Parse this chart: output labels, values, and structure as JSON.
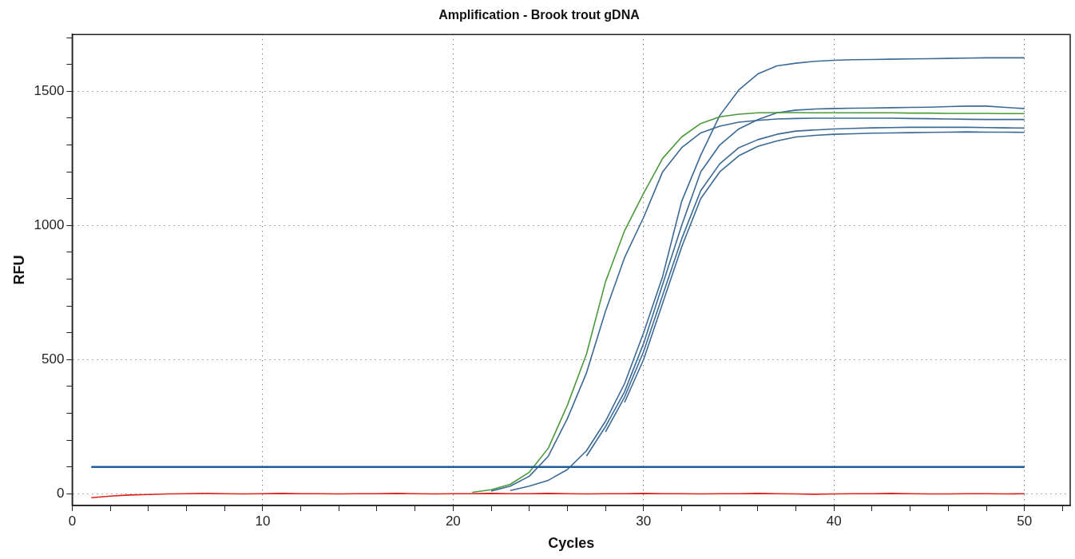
{
  "chart_data": {
    "type": "line",
    "title": "Amplification - Brook trout gDNA",
    "xlabel": "Cycles",
    "ylabel": "RFU",
    "x": [
      1,
      2,
      3,
      4,
      5,
      6,
      7,
      8,
      9,
      10,
      11,
      12,
      13,
      14,
      15,
      16,
      17,
      18,
      19,
      20,
      21,
      22,
      23,
      24,
      25,
      26,
      27,
      28,
      29,
      30,
      31,
      32,
      33,
      34,
      35,
      36,
      37,
      38,
      39,
      40,
      41,
      42,
      43,
      44,
      45,
      46,
      47,
      48,
      49,
      50
    ],
    "xlim": [
      0,
      52.4
    ],
    "xticks": [
      0,
      {
        "value": 2,
        "label": null
      },
      {
        "value": 4,
        "label": null
      },
      {
        "value": 6,
        "label": null
      },
      {
        "value": 8,
        "label": null
      },
      10,
      {
        "value": 12,
        "label": null
      },
      {
        "value": 14,
        "label": null
      },
      {
        "value": 16,
        "label": null
      },
      {
        "value": 18,
        "label": null
      },
      20,
      {
        "value": 22,
        "label": null
      },
      {
        "value": 24,
        "label": null
      },
      {
        "value": 26,
        "label": null
      },
      {
        "value": 28,
        "label": null
      },
      30,
      {
        "value": 32,
        "label": null
      },
      {
        "value": 34,
        "label": null
      },
      {
        "value": 36,
        "label": null
      },
      {
        "value": 38,
        "label": null
      },
      40,
      {
        "value": 42,
        "label": null
      },
      {
        "value": 44,
        "label": null
      },
      {
        "value": 46,
        "label": null
      },
      {
        "value": 48,
        "label": null
      },
      50,
      {
        "value": 52,
        "label": null
      }
    ],
    "ylim": [
      -44,
      1712
    ],
    "yticks": [
      0,
      {
        "value": 100,
        "label": null
      },
      {
        "value": 200,
        "label": null
      },
      {
        "value": 300,
        "label": null
      },
      {
        "value": 400,
        "label": null
      },
      500,
      {
        "value": 600,
        "label": null
      },
      {
        "value": 700,
        "label": null
      },
      {
        "value": 800,
        "label": null
      },
      {
        "value": 900,
        "label": null
      },
      1000,
      {
        "value": 1100,
        "label": null
      },
      {
        "value": 1200,
        "label": null
      },
      {
        "value": 1300,
        "label": null
      },
      {
        "value": 1400,
        "label": null
      },
      1500,
      {
        "value": 1600,
        "label": null
      },
      {
        "value": 1700,
        "label": null
      }
    ],
    "grid": true,
    "legend": false,
    "marker": "none",
    "line_style": "solid",
    "ref_lines": [
      {
        "axis": "y",
        "value": 100,
        "color": "#1f5c99"
      }
    ],
    "series": [
      {
        "color": "#4a9a3a",
        "values": [
          null,
          null,
          null,
          null,
          null,
          null,
          null,
          null,
          null,
          null,
          null,
          null,
          null,
          null,
          null,
          null,
          null,
          null,
          null,
          null,
          5,
          15,
          35,
          80,
          170,
          330,
          520,
          790,
          980,
          1120,
          1250,
          1330,
          1380,
          1405,
          1415,
          1420,
          1421,
          1421,
          1420,
          1420,
          1420,
          1420,
          1420,
          1419,
          1419,
          1418,
          1418,
          1418,
          1417,
          1417
        ]
      },
      {
        "color": "#3b6a96",
        "values": [
          null,
          null,
          null,
          null,
          null,
          null,
          null,
          null,
          null,
          null,
          null,
          null,
          null,
          null,
          null,
          null,
          null,
          null,
          null,
          null,
          null,
          10,
          28,
          65,
          140,
          280,
          450,
          680,
          880,
          1030,
          1200,
          1290,
          1345,
          1370,
          1385,
          1392,
          1397,
          1399,
          1400,
          1400,
          1400,
          1400,
          1400,
          1399,
          1398,
          1397,
          1396,
          1395,
          1395,
          1395
        ]
      },
      {
        "color": "#3b6a96",
        "values": [
          null,
          null,
          null,
          null,
          null,
          null,
          null,
          null,
          null,
          null,
          null,
          null,
          null,
          null,
          null,
          null,
          null,
          null,
          null,
          null,
          null,
          null,
          12,
          28,
          50,
          90,
          160,
          270,
          410,
          600,
          810,
          1090,
          1262,
          1410,
          1505,
          1565,
          1595,
          1605,
          1612,
          1616,
          1618,
          1619,
          1620,
          1621,
          1622,
          1623,
          1624,
          1625,
          1625,
          1625
        ]
      },
      {
        "color": "#3b6a96",
        "values": [
          null,
          null,
          null,
          null,
          null,
          null,
          null,
          null,
          null,
          null,
          null,
          null,
          null,
          null,
          null,
          null,
          null,
          null,
          null,
          null,
          null,
          null,
          null,
          null,
          null,
          null,
          140,
          250,
          380,
          560,
          780,
          1000,
          1200,
          1300,
          1360,
          1395,
          1420,
          1430,
          1434,
          1436,
          1437,
          1438,
          1439,
          1440,
          1441,
          1443,
          1445,
          1445,
          1440,
          1436
        ]
      },
      {
        "color": "#3b6a96",
        "values": [
          null,
          null,
          null,
          null,
          null,
          null,
          null,
          null,
          null,
          null,
          null,
          null,
          null,
          null,
          null,
          null,
          null,
          null,
          null,
          null,
          null,
          null,
          null,
          null,
          null,
          null,
          null,
          230,
          360,
          530,
          740,
          950,
          1130,
          1230,
          1290,
          1320,
          1340,
          1352,
          1356,
          1360,
          1362,
          1364,
          1365,
          1366,
          1366,
          1366,
          1366,
          1365,
          1364,
          1363
        ]
      },
      {
        "color": "#3b6a96",
        "values": [
          null,
          null,
          null,
          null,
          null,
          null,
          null,
          null,
          null,
          null,
          null,
          null,
          null,
          null,
          null,
          null,
          null,
          null,
          null,
          null,
          null,
          null,
          null,
          null,
          null,
          null,
          null,
          null,
          340,
          500,
          710,
          920,
          1100,
          1200,
          1260,
          1295,
          1315,
          1330,
          1336,
          1340,
          1342,
          1344,
          1345,
          1346,
          1347,
          1348,
          1349,
          1348,
          1348,
          1347
        ]
      },
      {
        "color": "#e0201c",
        "values": [
          -15,
          -9,
          -5,
          -3,
          -1,
          0,
          1,
          0,
          -1,
          0,
          1,
          0,
          0,
          -1,
          0,
          0,
          1,
          0,
          -1,
          0,
          0,
          1,
          0,
          0,
          1,
          0,
          -1,
          0,
          0,
          1,
          0,
          0,
          -1,
          0,
          0,
          1,
          0,
          -1,
          -2,
          -1,
          0,
          0,
          1,
          0,
          -1,
          -1,
          0,
          0,
          -1,
          0
        ]
      }
    ]
  }
}
